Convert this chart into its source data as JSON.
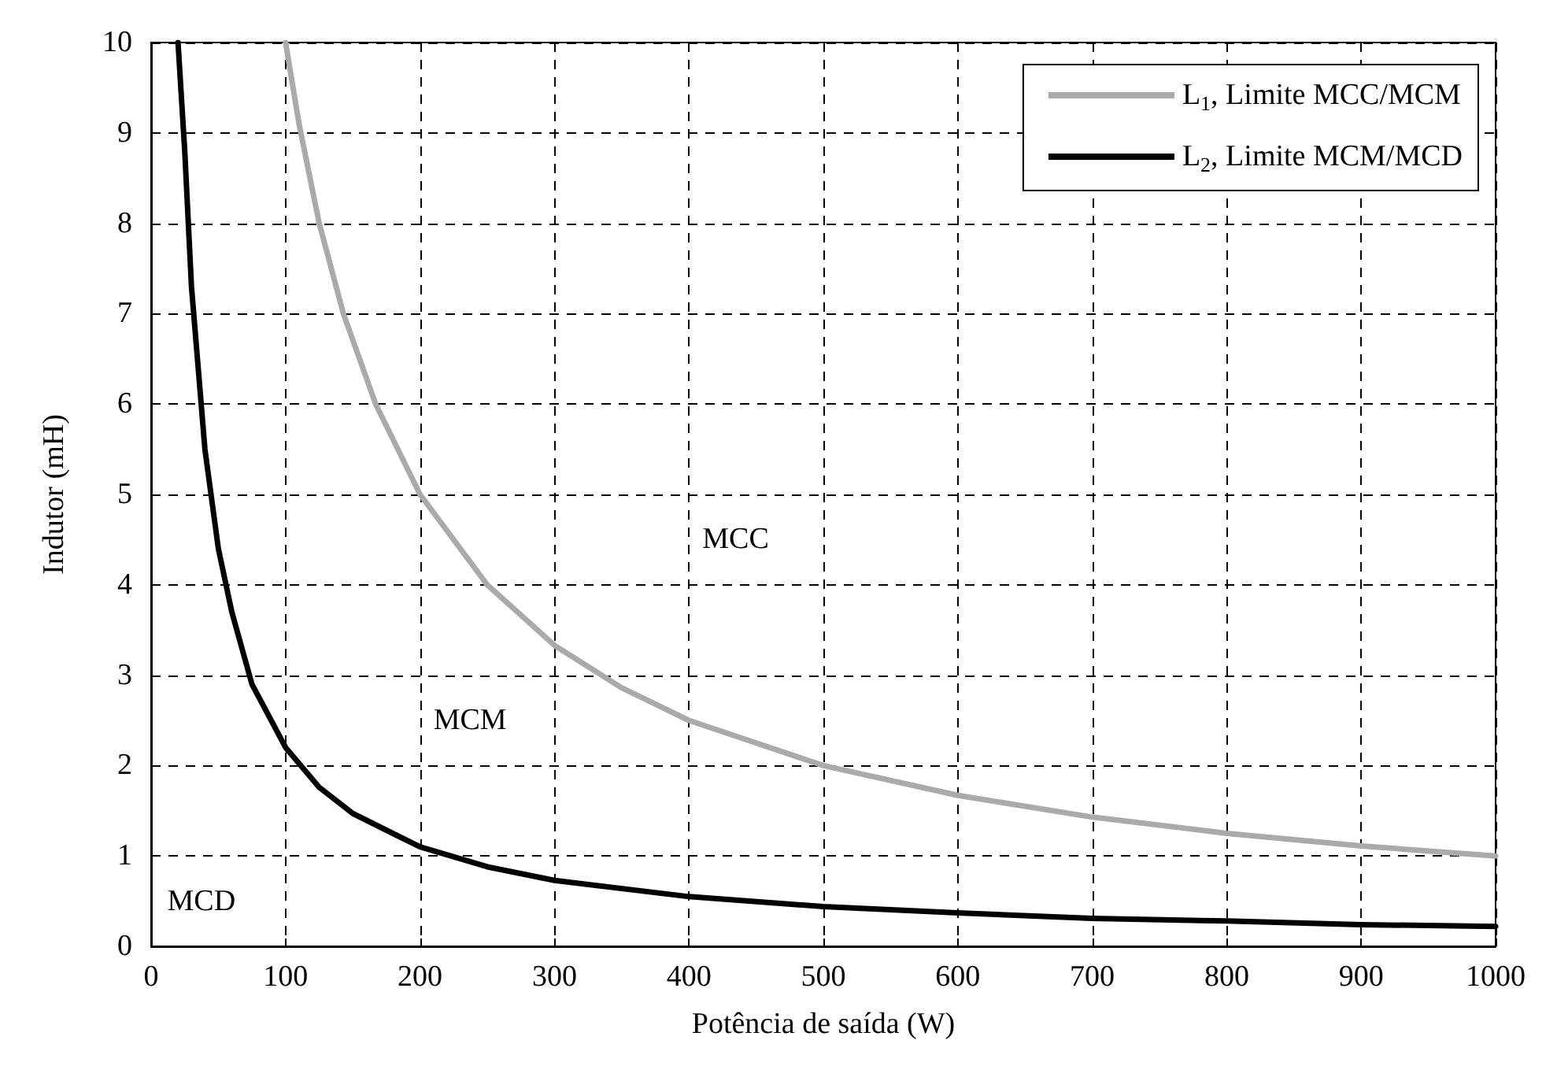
{
  "chart_data": {
    "type": "line",
    "xlabel": "Potência de saída (W)",
    "ylabel": "Indutor (mH)",
    "xlim": [
      0,
      1000
    ],
    "xticks": [
      0,
      100,
      200,
      300,
      400,
      500,
      600,
      700,
      800,
      900,
      1000
    ],
    "ylim": [
      0,
      10
    ],
    "yticks": [
      0,
      1,
      2,
      3,
      4,
      5,
      6,
      7,
      8,
      9,
      10
    ],
    "grid": true,
    "legend": "top right",
    "marker": "none",
    "line_style": "solid",
    "series": [
      {
        "name": "L$_{1}$, Limite MCC/MCM",
        "color": "#aaaaaa",
        "x": [
          100,
          110,
          125,
          143,
          167,
          200,
          250,
          300,
          350,
          400,
          500,
          600,
          700,
          800,
          900,
          1000
        ],
        "values": [
          10,
          9.1,
          8,
          7,
          6,
          5,
          4,
          3.33,
          2.86,
          2.5,
          2,
          1.67,
          1.43,
          1.25,
          1.11,
          1.0
        ]
      },
      {
        "name": "L$_{2}$, Limite MCM/MCD",
        "color": "#000000",
        "x": [
          20,
          25,
          30,
          40,
          50,
          60,
          75,
          100,
          125,
          150,
          200,
          250,
          300,
          400,
          500,
          600,
          700,
          800,
          900,
          1000
        ],
        "values": [
          10,
          8.8,
          7.3,
          5.5,
          4.4,
          3.7,
          2.9,
          2.2,
          1.76,
          1.47,
          1.1,
          0.88,
          0.73,
          0.55,
          0.44,
          0.37,
          0.31,
          0.28,
          0.24,
          0.22
        ]
      }
    ],
    "annotations": [
      "MCC",
      "MCM",
      "MCD"
    ]
  }
}
